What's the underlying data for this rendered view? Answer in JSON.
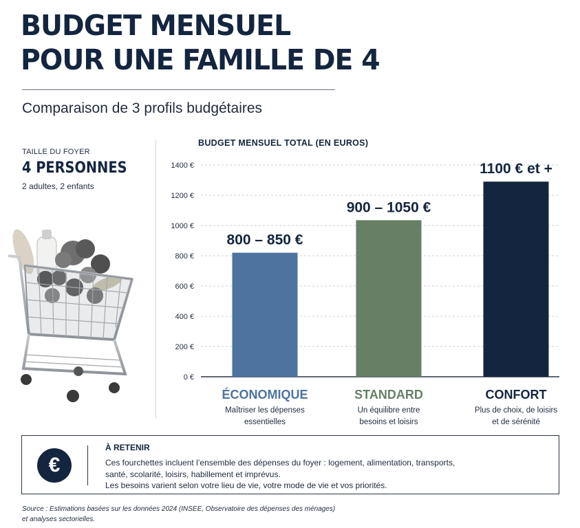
{
  "title": {
    "line1": "BUDGET MENSUEL",
    "line2": "POUR UNE FAMILLE DE 4"
  },
  "subtitle": "Comparaison de 3 profils budgétaires",
  "household": {
    "label": "TAILLE DU FOYER",
    "count": "4 PERSONNES",
    "detail": "2 adultes, 2 enfants"
  },
  "chart_data": {
    "type": "bar",
    "title": "BUDGET MENSUEL TOTAL (EN EUROS)",
    "categories": [
      "ÉCONOMIQUE",
      "STANDARD",
      "CONFORT"
    ],
    "values": [
      820,
      1035,
      1290
    ],
    "value_labels": [
      "800 – 850 €",
      "900 – 1050 €",
      "1100 € et +"
    ],
    "descriptions": [
      [
        "Maîtriser les dépenses",
        "essentielles"
      ],
      [
        "Un équilibre entre",
        "besoins et loisirs"
      ],
      [
        "Plus de choix, de loisirs",
        "et de sérénité"
      ]
    ],
    "colors": [
      "#4e739f",
      "#667f65",
      "#14253f"
    ],
    "y_ticks": [
      "0 €",
      "200 €",
      "400 €",
      "600 €",
      "800 €",
      "1000 €",
      "1200 €",
      "1400 €"
    ],
    "ylim": [
      0,
      1400
    ],
    "grid": true,
    "legend": "none"
  },
  "note": {
    "icon": "euro-icon",
    "symbol": "€",
    "title": "À RETENIR",
    "lines": [
      "Ces fourchettes incluent l’ensemble des dépenses du foyer : logement, alimentation, transports,",
      "santé, scolarité, loisirs, habillement et imprévus.",
      "Les besoins varient selon votre lieu de vie, votre mode de vie et vos priorités."
    ]
  },
  "source": {
    "lines": [
      "Source : Estimations basées sur les données 2024 (INSEE, Observatoire des dépenses des ménages)",
      "et analyses sectorielles."
    ]
  }
}
